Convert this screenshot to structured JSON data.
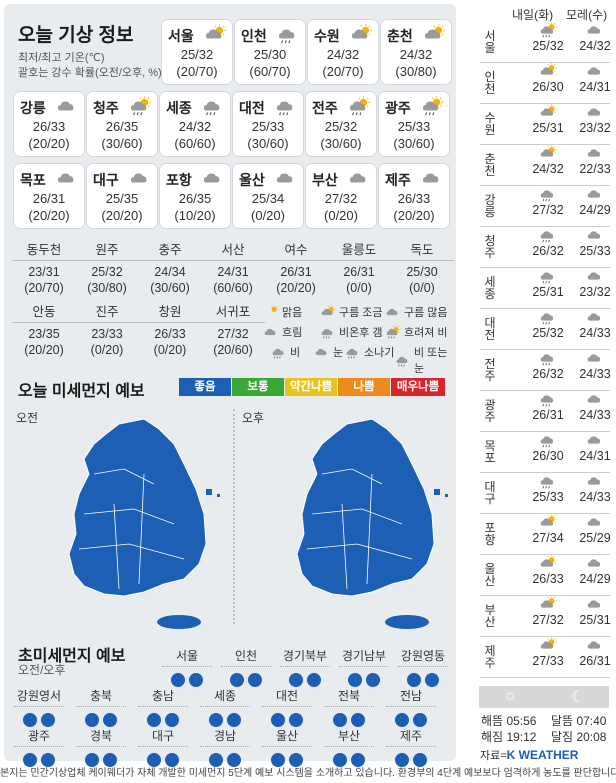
{
  "title": "오늘 기상 정보",
  "subtitle1": "최저/최고 기온(℃)",
  "subtitle2": "괄호는 강수 확률(오전/오후, %)",
  "cards": [
    {
      "name": "서울",
      "icon": "sun-cloud-icon",
      "temp": "25/32",
      "prob": "(20/70)"
    },
    {
      "name": "인천",
      "icon": "cloud-rain-icon",
      "temp": "25/30",
      "prob": "(60/70)"
    },
    {
      "name": "수원",
      "icon": "sun-cloud-icon",
      "temp": "24/32",
      "prob": "(20/70)"
    },
    {
      "name": "춘천",
      "icon": "sun-cloud-icon",
      "temp": "24/32",
      "prob": "(30/80)"
    },
    {
      "name": "강릉",
      "icon": "cloud-icon",
      "temp": "26/33",
      "prob": "(20/20)"
    },
    {
      "name": "청주",
      "icon": "sun-cloud-rain-icon",
      "temp": "26/35",
      "prob": "(30/60)"
    },
    {
      "name": "세종",
      "icon": "cloud-rain-icon",
      "temp": "24/32",
      "prob": "(60/60)"
    },
    {
      "name": "대전",
      "icon": "cloud-rain-icon",
      "temp": "25/33",
      "prob": "(30/60)"
    },
    {
      "name": "전주",
      "icon": "sun-cloud-rain-icon",
      "temp": "25/32",
      "prob": "(30/60)"
    },
    {
      "name": "광주",
      "icon": "sun-cloud-rain-icon",
      "temp": "25/33",
      "prob": "(30/60)"
    },
    {
      "name": "목포",
      "icon": "cloud-icon",
      "temp": "26/31",
      "prob": "(20/20)"
    },
    {
      "name": "대구",
      "icon": "cloud-icon",
      "temp": "25/35",
      "prob": "(20/20)"
    },
    {
      "name": "포항",
      "icon": "cloud-icon",
      "temp": "26/35",
      "prob": "(10/20)"
    },
    {
      "name": "울산",
      "icon": "cloud-icon",
      "temp": "25/34",
      "prob": "(0/20)"
    },
    {
      "name": "부산",
      "icon": "cloud-icon",
      "temp": "27/32",
      "prob": "(0/20)"
    },
    {
      "name": "제주",
      "icon": "cloud-icon",
      "temp": "26/33",
      "prob": "(20/20)"
    }
  ],
  "cities": [
    {
      "name": "동두천",
      "temp": "23/31",
      "prob": "(20/70)"
    },
    {
      "name": "원주",
      "temp": "25/32",
      "prob": "(30/80)"
    },
    {
      "name": "충주",
      "temp": "24/34",
      "prob": "(30/60)"
    },
    {
      "name": "서산",
      "temp": "24/31",
      "prob": "(60/60)"
    },
    {
      "name": "여수",
      "temp": "26/31",
      "prob": "(20/20)"
    },
    {
      "name": "울릉도",
      "temp": "26/31",
      "prob": "(0/0)"
    },
    {
      "name": "독도",
      "temp": "25/30",
      "prob": "(0/0)"
    },
    {
      "name": "안동",
      "temp": "23/35",
      "prob": "(20/20)"
    },
    {
      "name": "진주",
      "temp": "23/33",
      "prob": "(0/20)"
    },
    {
      "name": "창원",
      "temp": "26/33",
      "prob": "(0/20)"
    },
    {
      "name": "서귀포",
      "temp": "27/32",
      "prob": "(20/60)"
    }
  ],
  "legend": [
    "맑음",
    "구름 조금",
    "구름 많음",
    "흐림",
    "비온후 갬",
    "흐려져 비",
    "비",
    "눈",
    "소나기",
    "비 또는 눈"
  ],
  "dust_title": "오늘 미세먼지 예보",
  "dust_levels": [
    {
      "label": "좋음",
      "color": "#1c5fb5"
    },
    {
      "label": "보통",
      "color": "#39a935"
    },
    {
      "label": "약간나쁨",
      "color": "#e8c51b"
    },
    {
      "label": "나쁨",
      "color": "#ef8a1c"
    },
    {
      "label": "매우나쁨",
      "color": "#d7262b"
    }
  ],
  "am": "오전",
  "pm": "오후",
  "fine_title": "초미세먼지 예보",
  "fine_sub": "오전/오후",
  "fine": [
    "서울",
    "인천",
    "경기북부",
    "경기남부",
    "강원영동",
    "강원영서",
    "충북",
    "충남",
    "세종",
    "대전",
    "전북",
    "전남",
    "광주",
    "경북",
    "대구",
    "경남",
    "울산",
    "부산",
    "제주"
  ],
  "right_header": {
    "tomorrow": "내일(화)",
    "day_after": "모레(수)"
  },
  "forecast": [
    {
      "city": "서울",
      "t1": "25/32",
      "i1": "sun-cloud-rain-icon",
      "t2": "24/32",
      "i2": "cloud-icon"
    },
    {
      "city": "인천",
      "t1": "26/30",
      "i1": "sun-cloud-icon",
      "t2": "24/31",
      "i2": "cloud-icon"
    },
    {
      "city": "수원",
      "t1": "25/31",
      "i1": "sun-cloud-icon",
      "t2": "23/32",
      "i2": "cloud-icon"
    },
    {
      "city": "춘천",
      "t1": "24/32",
      "i1": "sun-cloud-icon",
      "t2": "22/33",
      "i2": "cloud-icon"
    },
    {
      "city": "강릉",
      "t1": "27/32",
      "i1": "cloud-rain-icon",
      "t2": "24/29",
      "i2": "cloud-icon"
    },
    {
      "city": "청주",
      "t1": "26/32",
      "i1": "cloud-rain-icon",
      "t2": "25/33",
      "i2": "cloud-icon"
    },
    {
      "city": "세종",
      "t1": "25/31",
      "i1": "cloud-rain-icon",
      "t2": "23/32",
      "i2": "cloud-icon"
    },
    {
      "city": "대전",
      "t1": "25/32",
      "i1": "cloud-rain-icon",
      "t2": "24/33",
      "i2": "cloud-icon"
    },
    {
      "city": "전주",
      "t1": "26/32",
      "i1": "cloud-rain-icon",
      "t2": "24/33",
      "i2": "cloud-icon"
    },
    {
      "city": "광주",
      "t1": "26/31",
      "i1": "cloud-rain-icon",
      "t2": "24/33",
      "i2": "cloud-icon"
    },
    {
      "city": "목포",
      "t1": "26/30",
      "i1": "cloud-rain-icon",
      "t2": "24/31",
      "i2": "cloud-icon"
    },
    {
      "city": "대구",
      "t1": "25/33",
      "i1": "cloud-rain-icon",
      "t2": "24/33",
      "i2": "cloud-icon"
    },
    {
      "city": "포항",
      "t1": "27/34",
      "i1": "sun-cloud-icon",
      "t2": "25/29",
      "i2": "cloud-icon"
    },
    {
      "city": "울산",
      "t1": "26/33",
      "i1": "sun-cloud-icon",
      "t2": "24/29",
      "i2": "cloud-icon"
    },
    {
      "city": "부산",
      "t1": "27/32",
      "i1": "sun-cloud-icon",
      "t2": "25/31",
      "i2": "cloud-icon"
    },
    {
      "city": "제주",
      "t1": "27/33",
      "i1": "sun-cloud-icon",
      "t2": "26/31",
      "i2": "cloud-icon"
    }
  ],
  "sun": {
    "rise_label": "해뜸",
    "rise": "05:56",
    "set_label": "해짐",
    "set": "19:12",
    "moonrise_label": "달뜸",
    "moonrise": "07:40",
    "moonset_label": "달짐",
    "moonset": "20:08"
  },
  "source": "자료=",
  "brand": "K WEATHER",
  "footnote": "본지는 민간기상업체 케이웨더가 자체 개발한 미세먼지 5단계 예보 시스템을 소개하고 있습니다. 환경부의 4단계 예보보다 엄격하게 농도를 판단합니다."
}
